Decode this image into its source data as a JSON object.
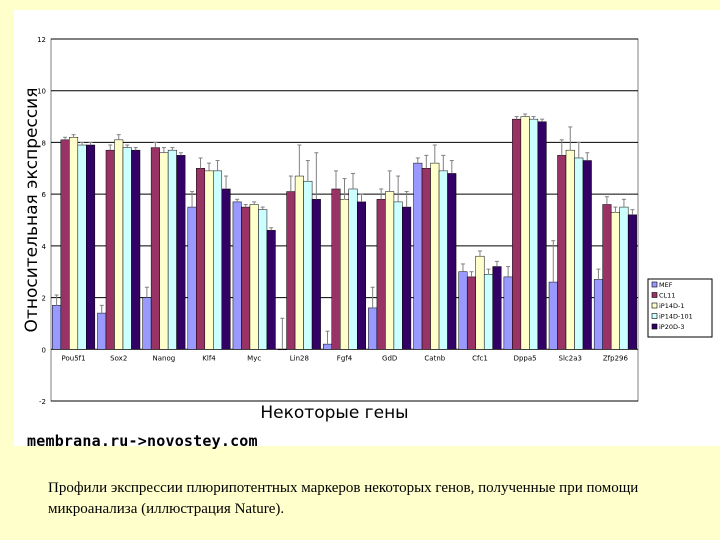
{
  "chart_data": {
    "type": "bar",
    "ylabel": "Относительная экспрессия",
    "xlabel": "Некоторые гены",
    "ylim": [
      -2,
      12
    ],
    "yticks": [
      -2,
      0,
      2,
      4,
      6,
      8,
      10,
      12
    ],
    "grid": true,
    "legend_position": "right",
    "categories": [
      "Pou5f1",
      "Sox2",
      "Nanog",
      "Klf4",
      "Myc",
      "Lin28",
      "Fgf4",
      "GdD",
      "Catnb",
      "Cfc1",
      "Dppa5",
      "Slc2a3",
      "Zfp296"
    ],
    "series": [
      {
        "name": "MEF",
        "color": "#9999ff",
        "values": [
          1.7,
          1.4,
          2.0,
          5.5,
          5.7,
          0.0,
          0.2,
          1.6,
          7.2,
          3.0,
          2.8,
          2.6,
          2.7
        ],
        "errors": [
          0.4,
          0.3,
          0.4,
          0.6,
          0.1,
          1.2,
          0.5,
          0.8,
          0.2,
          0.3,
          0.4,
          1.6,
          0.4
        ]
      },
      {
        "name": "CL11",
        "color": "#993366",
        "values": [
          8.1,
          7.7,
          7.8,
          7.0,
          5.5,
          6.1,
          6.2,
          5.8,
          7.0,
          2.8,
          8.9,
          7.5,
          5.6
        ],
        "errors": [
          0.1,
          0.2,
          0.2,
          0.4,
          0.1,
          0.6,
          0.7,
          0.4,
          0.5,
          0.2,
          0.1,
          0.6,
          0.3
        ]
      },
      {
        "name": "iP14D-1",
        "color": "#ffffcc",
        "values": [
          8.2,
          8.1,
          7.6,
          6.9,
          5.6,
          6.7,
          5.8,
          6.1,
          7.2,
          3.6,
          9.0,
          7.7,
          5.3
        ],
        "errors": [
          0.1,
          0.2,
          0.2,
          0.3,
          0.1,
          1.2,
          0.8,
          0.8,
          0.7,
          0.2,
          0.1,
          0.9,
          0.2
        ]
      },
      {
        "name": "iP14D-101",
        "color": "#ccffff",
        "values": [
          7.9,
          7.8,
          7.7,
          6.9,
          5.4,
          6.5,
          6.2,
          5.7,
          6.9,
          2.9,
          8.9,
          7.4,
          5.5
        ],
        "errors": [
          0.1,
          0.1,
          0.1,
          0.4,
          0.1,
          0.8,
          0.6,
          1.0,
          0.6,
          0.2,
          0.1,
          0.6,
          0.3
        ]
      },
      {
        "name": "iP20D-3",
        "color": "#330066",
        "values": [
          7.9,
          7.7,
          7.5,
          6.2,
          4.6,
          5.8,
          5.7,
          5.5,
          6.8,
          3.2,
          8.8,
          7.3,
          5.2
        ],
        "errors": [
          0.1,
          0.1,
          0.1,
          0.5,
          0.1,
          1.8,
          0.3,
          0.6,
          0.5,
          0.2,
          0.1,
          0.3,
          0.2
        ]
      }
    ]
  },
  "watermark": "membrana.ru->novostey.com",
  "caption": "Профили экспрессии плюрипотентных маркеров некоторых генов, полученные при помощи микроанализа (иллюстрация Nature)."
}
